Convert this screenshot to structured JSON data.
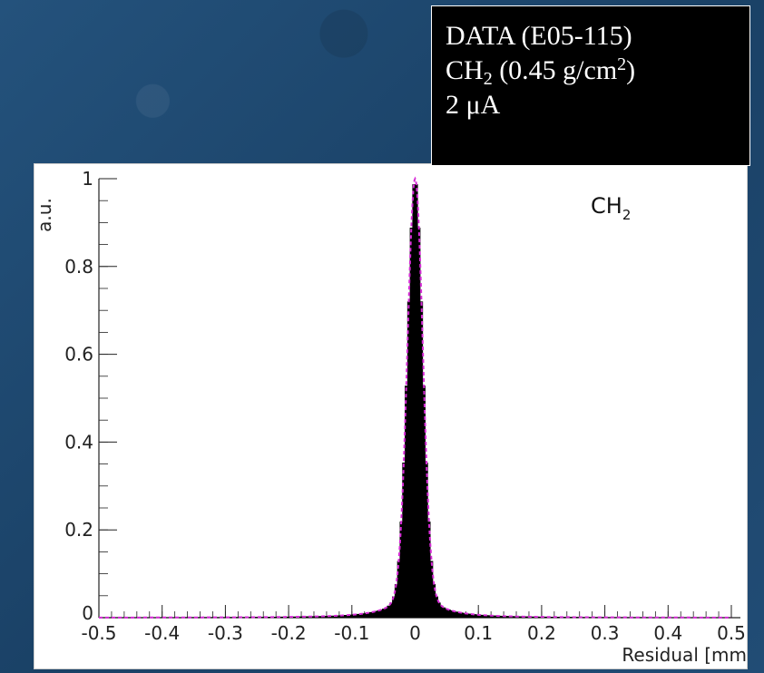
{
  "legend_box": {
    "line1": "DATA (E05-115)",
    "line2_main": "CH",
    "line2_sub": "2",
    "line2_rest": " (0.45 g/cm",
    "line2_sup": "2",
    "line2_end": ")",
    "line3": "2 μA"
  },
  "chart_data": {
    "type": "bar",
    "xlabel": "Residual [mm",
    "ylabel": "a.u.",
    "annotation": "CH",
    "annotation_sub": "2",
    "xlim": [
      -0.5,
      0.5
    ],
    "ylim": [
      0,
      1
    ],
    "x_ticks": [
      "-0.5",
      "-0.4",
      "-0.3",
      "-0.2",
      "-0.1",
      "0",
      "0.1",
      "0.2",
      "0.3",
      "0.4",
      "0.5"
    ],
    "y_ticks": [
      "0",
      "0.2",
      "0.4",
      "0.6",
      "0.8",
      "1"
    ],
    "series": [
      {
        "style": "histogram",
        "color": "#000000",
        "peak_x": 0.0,
        "peak_y": 1.0,
        "core_sigma": 0.012,
        "tail_width": 0.035,
        "tail_fraction": 0.06
      },
      {
        "style": "fit",
        "color": "#d62bd6",
        "dash": true,
        "peak_x": 0.0,
        "peak_y": 1.0,
        "core_sigma": 0.012,
        "tail_width": 0.035,
        "tail_fraction": 0.06
      }
    ],
    "grid": false
  }
}
